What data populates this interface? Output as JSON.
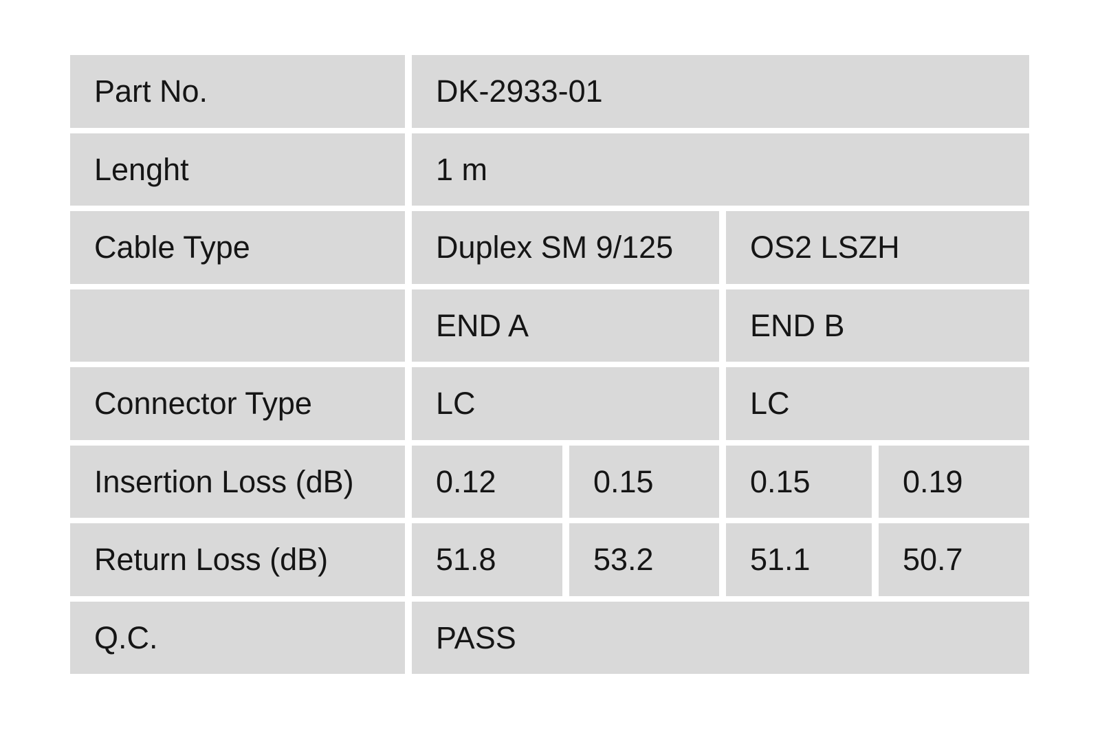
{
  "page": {
    "background_color": "#ffffff",
    "cell_background_color": "#d9d9d9",
    "text_color": "#151515"
  },
  "table": {
    "rows": [
      {
        "label": "Part No.",
        "cells": [
          {
            "text": "DK-2933-01",
            "span": "full"
          }
        ]
      },
      {
        "label": "Lenght",
        "cells": [
          {
            "text": "1 m",
            "span": "full"
          }
        ]
      },
      {
        "label": "Cable Type",
        "cells": [
          {
            "text": "Duplex SM 9/125",
            "span": "halfA"
          },
          {
            "text": "OS2 LSZH",
            "span": "halfB"
          }
        ]
      },
      {
        "label": "",
        "cells": [
          {
            "text": "END A",
            "span": "halfA"
          },
          {
            "text": "END B",
            "span": "halfB"
          }
        ]
      },
      {
        "label": "Connector Type",
        "cells": [
          {
            "text": "LC",
            "span": "halfA"
          },
          {
            "text": "LC",
            "span": "halfB"
          }
        ]
      },
      {
        "label": "Insertion Loss (dB)",
        "cells": [
          {
            "text": "0.12"
          },
          {
            "text": "0.15"
          },
          {
            "text": "0.15"
          },
          {
            "text": "0.19"
          }
        ]
      },
      {
        "label": "Return Loss (dB)",
        "cells": [
          {
            "text": "51.8"
          },
          {
            "text": "53.2"
          },
          {
            "text": "51.1"
          },
          {
            "text": "50.7"
          }
        ]
      },
      {
        "label": "Q.C.",
        "cells": [
          {
            "text": "PASS",
            "span": "full"
          }
        ]
      }
    ]
  }
}
